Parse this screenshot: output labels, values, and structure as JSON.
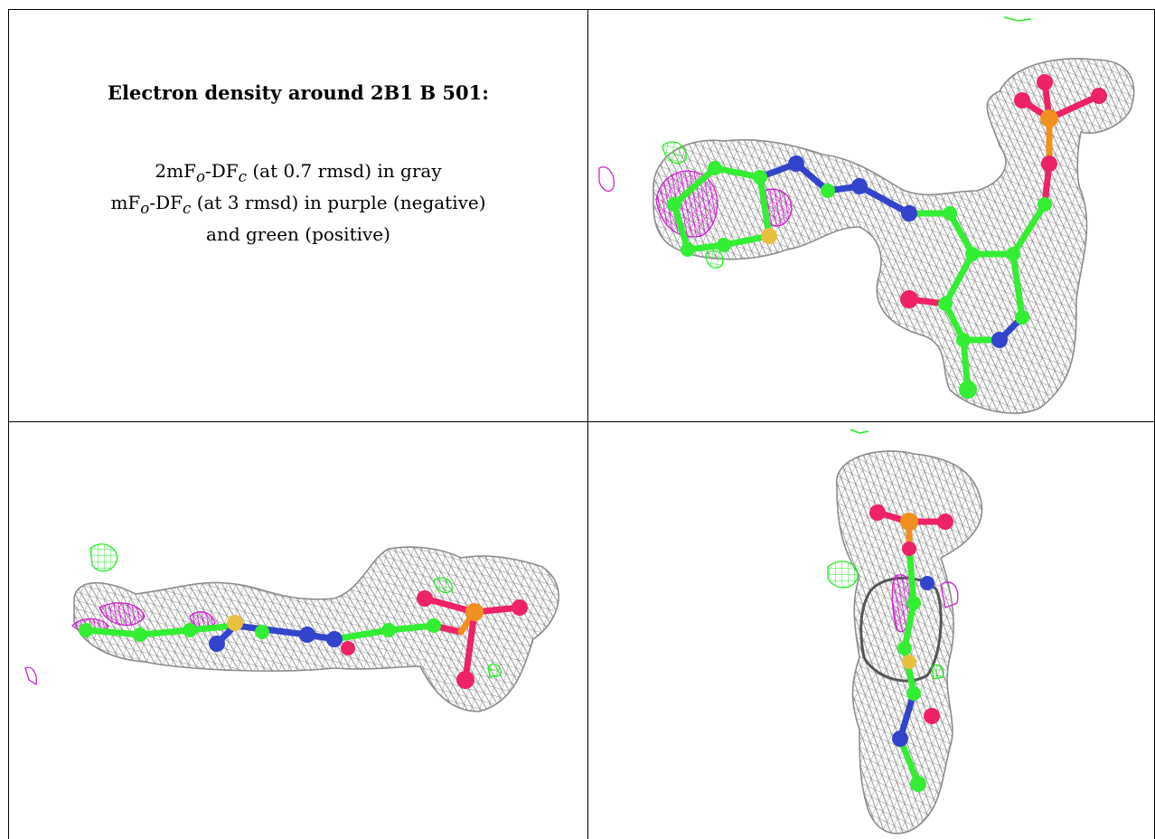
{
  "caption": {
    "title": "Electron density around 2B1 B 501:",
    "line1": {
      "pre": "2mF",
      "sub1": "o",
      "mid": "-DF",
      "sub2": "c",
      "post": " (at 0.7 rmsd) in gray"
    },
    "line2": {
      "pre": "mF",
      "sub1": "o",
      "mid": "-DF",
      "sub2": "c",
      "post": " (at 3 rmsd) in purple (negative)"
    },
    "line3": "and green (positive)"
  },
  "colors": {
    "mesh_gray": "#9a9a9a",
    "carbon_green": "#33ee33",
    "nitrogen_blue": "#3344cc",
    "oxygen_red": "#ee2266",
    "sulfur_yellow": "#e8c040",
    "phosphorus_orange": "#f09020",
    "positive_green": "#22ee22",
    "negative_purple": "#cc22cc"
  },
  "panels": [
    {
      "view": "top-right"
    },
    {
      "view": "bottom-left"
    },
    {
      "view": "bottom-right"
    }
  ]
}
